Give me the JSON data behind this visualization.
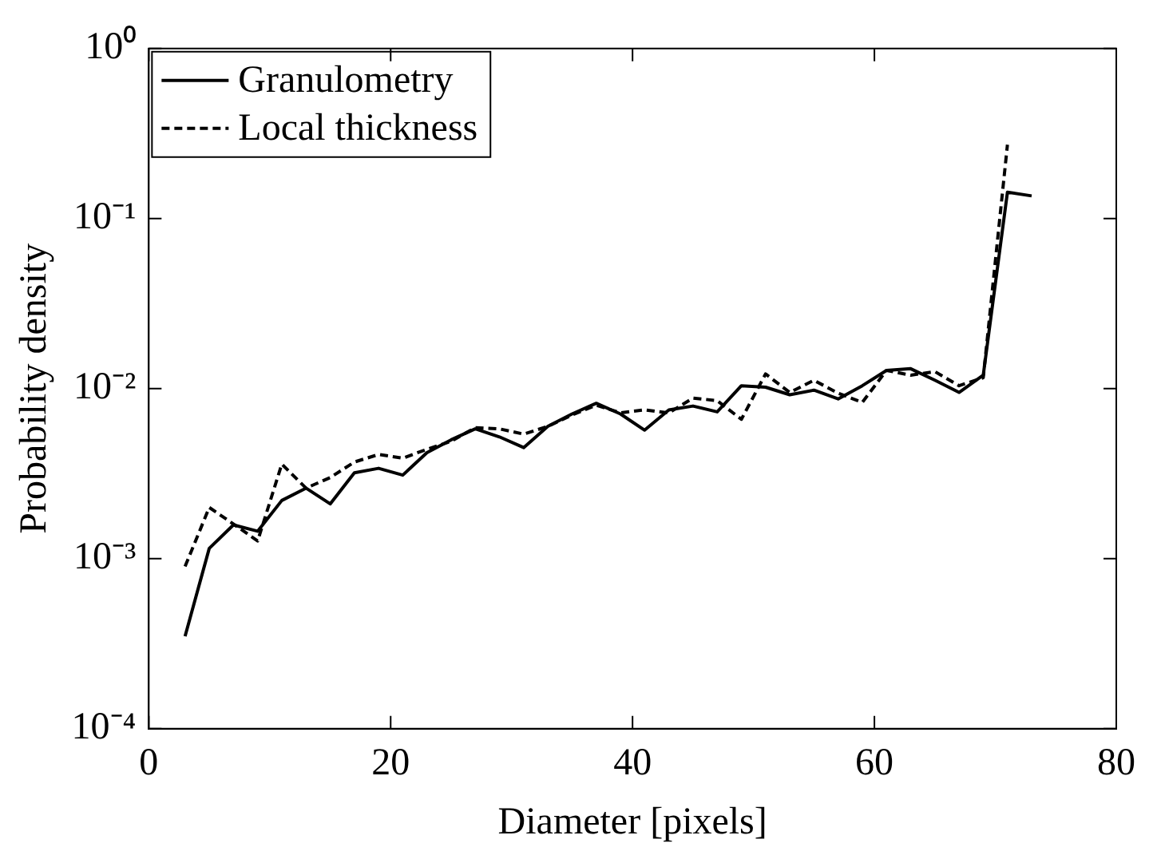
{
  "chart_data": {
    "type": "line",
    "xlabel": "Diameter [pixels]",
    "ylabel": "Probability density",
    "log": "y",
    "legend": "top left",
    "grid": false,
    "marker": "none",
    "xlim": [
      0,
      80
    ],
    "xticks": [
      0,
      20,
      40,
      60,
      80
    ],
    "ylim": [
      0.0001,
      1
    ],
    "yticks": [
      {
        "value": 0.0001,
        "label": "10⁻⁴"
      },
      {
        "value": 0.001,
        "label": "10⁻³"
      },
      {
        "value": 0.01,
        "label": "10⁻²"
      },
      {
        "value": 0.1,
        "label": "10⁻¹"
      },
      {
        "value": 1,
        "label": "10⁰"
      }
    ],
    "series": [
      {
        "name": "Granulometry",
        "color": "#000000",
        "line_style": "solid",
        "x": [
          3,
          5,
          7,
          9,
          11,
          13,
          15,
          17,
          19,
          21,
          23,
          25,
          27,
          29,
          31,
          33,
          35,
          37,
          39,
          41,
          43,
          45,
          47,
          49,
          51,
          53,
          55,
          57,
          59,
          61,
          63,
          65,
          67,
          69,
          71,
          73
        ],
        "values": [
          0.00035,
          0.00115,
          0.00158,
          0.00145,
          0.0022,
          0.0026,
          0.0021,
          0.0032,
          0.0034,
          0.0031,
          0.0042,
          0.005,
          0.0058,
          0.0052,
          0.0045,
          0.006,
          0.0071,
          0.0082,
          0.0071,
          0.0057,
          0.0075,
          0.0079,
          0.0073,
          0.0104,
          0.0102,
          0.0092,
          0.0098,
          0.0087,
          0.0104,
          0.0128,
          0.0131,
          0.0112,
          0.0095,
          0.012,
          0.143,
          0.136
        ]
      },
      {
        "name": "Local thickness",
        "color": "#000000",
        "line_style": "dashed",
        "x": [
          3,
          5,
          7,
          9,
          11,
          13,
          15,
          17,
          19,
          21,
          23,
          25,
          27,
          29,
          31,
          33,
          35,
          37,
          39,
          41,
          43,
          45,
          47,
          49,
          51,
          53,
          55,
          57,
          59,
          61,
          63,
          65,
          67,
          69,
          71
        ],
        "values": [
          0.0009,
          0.002,
          0.0016,
          0.00127,
          0.0036,
          0.0026,
          0.003,
          0.0037,
          0.0041,
          0.0039,
          0.0044,
          0.0049,
          0.0059,
          0.0058,
          0.0054,
          0.006,
          0.007,
          0.008,
          0.0072,
          0.0075,
          0.0072,
          0.0088,
          0.0085,
          0.0066,
          0.0122,
          0.0095,
          0.0112,
          0.0094,
          0.0083,
          0.0128,
          0.012,
          0.0126,
          0.0104,
          0.0116,
          0.272
        ]
      }
    ]
  }
}
